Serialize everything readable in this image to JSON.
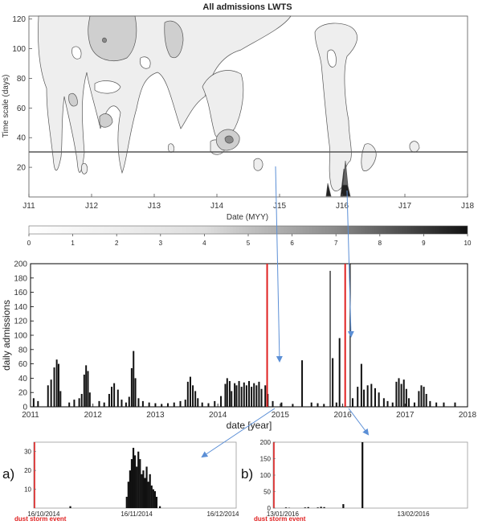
{
  "colors": {
    "storm_line": "#e02020",
    "arrow": "#5b8fd6",
    "contour_fill": "#eeeeee",
    "contour_mid": "#cfcfcf",
    "contour_dark": "#8a8a8a",
    "bar": "#111111"
  },
  "chart_data": [
    {
      "type": "heatmap",
      "title": "All admissions LWTS",
      "xlabel": "Date (MYY)",
      "ylabel": "Time scale (days)",
      "x_ticks": [
        "J11",
        "J12",
        "J13",
        "J14",
        "J15",
        "J16",
        "J17",
        "J18"
      ],
      "y_ticks": [
        "20",
        "40",
        "60",
        "80",
        "100",
        "120"
      ],
      "ylim": [
        0,
        122
      ],
      "significance_level_days": 31,
      "colorbar": {
        "min": 0,
        "max": 10,
        "ticks": [
          "0",
          "1",
          "2",
          "3",
          "4",
          "5",
          "6",
          "7",
          "8",
          "9",
          "10"
        ]
      }
    },
    {
      "type": "bar",
      "xlabel": "date [year]",
      "ylabel": "daily admissions",
      "x_ticks": [
        "2011",
        "2012",
        "2013",
        "2014",
        "2015",
        "2016",
        "2017",
        "2018"
      ],
      "y_ticks": [
        "0",
        "20",
        "40",
        "60",
        "80",
        "100",
        "120",
        "140",
        "160",
        "180",
        "200"
      ],
      "xlim": [
        2011.0,
        2018.0
      ],
      "ylim": [
        0,
        200
      ],
      "dust_storm_events": [
        2014.79,
        2016.04
      ],
      "values": [
        [
          2011.05,
          12
        ],
        [
          2011.12,
          8
        ],
        [
          2011.28,
          30
        ],
        [
          2011.33,
          38
        ],
        [
          2011.38,
          55
        ],
        [
          2011.42,
          66
        ],
        [
          2011.45,
          60
        ],
        [
          2011.48,
          22
        ],
        [
          2011.62,
          6
        ],
        [
          2011.7,
          10
        ],
        [
          2011.78,
          12
        ],
        [
          2011.82,
          18
        ],
        [
          2011.86,
          45
        ],
        [
          2011.89,
          58
        ],
        [
          2011.92,
          50
        ],
        [
          2011.95,
          20
        ],
        [
          2012.1,
          8
        ],
        [
          2012.18,
          6
        ],
        [
          2012.26,
          18
        ],
        [
          2012.3,
          28
        ],
        [
          2012.34,
          33
        ],
        [
          2012.4,
          24
        ],
        [
          2012.46,
          10
        ],
        [
          2012.53,
          6
        ],
        [
          2012.58,
          14
        ],
        [
          2012.62,
          54
        ],
        [
          2012.65,
          78
        ],
        [
          2012.68,
          40
        ],
        [
          2012.73,
          12
        ],
        [
          2012.8,
          8
        ],
        [
          2012.9,
          6
        ],
        [
          2013.0,
          5
        ],
        [
          2013.1,
          4
        ],
        [
          2013.2,
          5
        ],
        [
          2013.3,
          6
        ],
        [
          2013.4,
          8
        ],
        [
          2013.48,
          10
        ],
        [
          2013.52,
          35
        ],
        [
          2013.56,
          42
        ],
        [
          2013.6,
          30
        ],
        [
          2013.64,
          22
        ],
        [
          2013.68,
          12
        ],
        [
          2013.75,
          6
        ],
        [
          2013.85,
          5
        ],
        [
          2013.95,
          8
        ],
        [
          2014.05,
          15
        ],
        [
          2014.12,
          32
        ],
        [
          2014.15,
          40
        ],
        [
          2014.19,
          36
        ],
        [
          2014.22,
          22
        ],
        [
          2014.27,
          33
        ],
        [
          2014.3,
          30
        ],
        [
          2014.34,
          36
        ],
        [
          2014.38,
          28
        ],
        [
          2014.42,
          34
        ],
        [
          2014.46,
          30
        ],
        [
          2014.5,
          36
        ],
        [
          2014.54,
          28
        ],
        [
          2014.58,
          33
        ],
        [
          2014.62,
          30
        ],
        [
          2014.66,
          35
        ],
        [
          2014.7,
          25
        ],
        [
          2014.76,
          30
        ],
        [
          2014.8,
          18
        ],
        [
          2014.88,
          8
        ],
        [
          2015.02,
          6
        ],
        [
          2015.2,
          4
        ],
        [
          2015.35,
          65
        ],
        [
          2015.5,
          6
        ],
        [
          2015.6,
          5
        ],
        [
          2015.7,
          4
        ],
        [
          2015.8,
          190
        ],
        [
          2015.84,
          68
        ],
        [
          2015.9,
          6
        ],
        [
          2015.95,
          96
        ],
        [
          2016.12,
          200
        ],
        [
          2016.16,
          12
        ],
        [
          2016.24,
          28
        ],
        [
          2016.3,
          60
        ],
        [
          2016.34,
          24
        ],
        [
          2016.4,
          30
        ],
        [
          2016.46,
          32
        ],
        [
          2016.52,
          26
        ],
        [
          2016.58,
          20
        ],
        [
          2016.66,
          12
        ],
        [
          2016.72,
          8
        ],
        [
          2016.8,
          6
        ],
        [
          2016.86,
          35
        ],
        [
          2016.9,
          40
        ],
        [
          2016.94,
          32
        ],
        [
          2016.98,
          38
        ],
        [
          2017.02,
          25
        ],
        [
          2017.06,
          12
        ],
        [
          2017.15,
          6
        ],
        [
          2017.22,
          22
        ],
        [
          2017.26,
          30
        ],
        [
          2017.3,
          28
        ],
        [
          2017.34,
          18
        ],
        [
          2017.4,
          8
        ],
        [
          2017.5,
          6
        ],
        [
          2017.62,
          6
        ],
        [
          2017.8,
          6
        ]
      ]
    },
    {
      "type": "bar",
      "panel_label": "a)",
      "annotation": "dust storm event",
      "x_ticks": [
        "16/10/2014",
        "16/11/2014",
        "16/12/2014"
      ],
      "y_ticks": [
        "10",
        "20",
        "30"
      ],
      "ylim": [
        0,
        35
      ],
      "xlim_days": [
        0,
        61
      ],
      "dust_storm_day": 0,
      "values": [
        [
          11,
          1
        ],
        [
          28,
          6
        ],
        [
          28.5,
          14
        ],
        [
          29,
          20
        ],
        [
          29.5,
          26
        ],
        [
          30,
          32
        ],
        [
          30.5,
          28
        ],
        [
          31,
          22
        ],
        [
          31.5,
          30
        ],
        [
          32,
          26
        ],
        [
          32.5,
          18
        ],
        [
          33,
          20
        ],
        [
          33.5,
          16
        ],
        [
          34,
          22
        ],
        [
          34.5,
          14
        ],
        [
          35,
          18
        ],
        [
          35.5,
          12
        ],
        [
          36,
          10
        ],
        [
          36.5,
          9
        ],
        [
          37,
          6
        ],
        [
          38,
          1
        ]
      ]
    },
    {
      "type": "bar",
      "panel_label": "b)",
      "annotation": "dust storm event",
      "x_ticks": [
        "13/01/2016",
        "13/02/2016"
      ],
      "y_ticks": [
        "0",
        "50",
        "100",
        "150",
        "200"
      ],
      "ylim": [
        0,
        200
      ],
      "xlim_days": [
        0,
        61
      ],
      "dust_storm_day": 0,
      "values": [
        [
          4,
          2
        ],
        [
          5,
          1
        ],
        [
          10,
          2
        ],
        [
          11,
          3
        ],
        [
          14,
          2
        ],
        [
          15,
          4
        ],
        [
          16,
          3
        ],
        [
          22,
          12
        ],
        [
          28,
          200
        ]
      ]
    }
  ]
}
